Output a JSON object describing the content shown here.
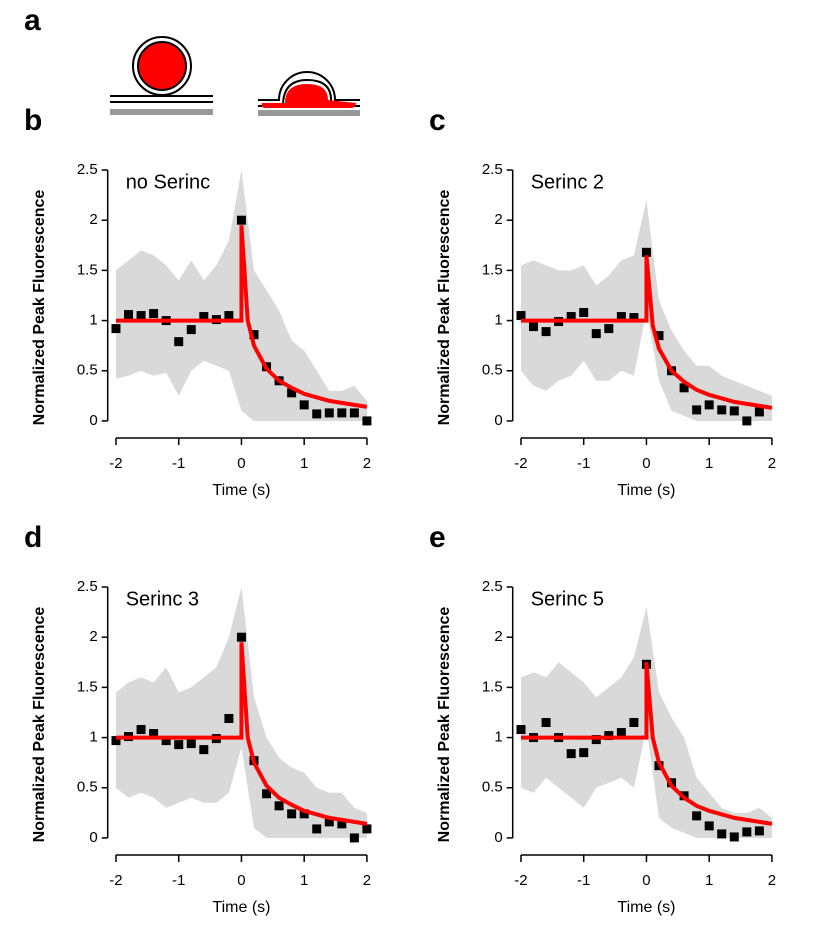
{
  "diagram_label": "a",
  "chart_data": [
    {
      "type": "scatter",
      "panel": "b",
      "annotation": "no Serinc",
      "y_label": "Normalized Peak Fluorescence",
      "x_label": "Time (s)",
      "xlim": [
        -2.1,
        2.1
      ],
      "ylim": [
        -0.17,
        2.55
      ],
      "xticks": [
        -2,
        -1,
        0,
        1,
        2
      ],
      "yticks": [
        0,
        0.5,
        1,
        1.5,
        2,
        2.5
      ],
      "band": {
        "color": "#d9d9d9",
        "x": [
          -2,
          -1.8,
          -1.6,
          -1.4,
          -1.2,
          -1,
          -0.8,
          -0.6,
          -0.4,
          -0.2,
          0,
          0.2,
          0.4,
          0.6,
          0.8,
          1,
          1.2,
          1.4,
          1.6,
          1.8,
          2
        ],
        "upper": [
          1.5,
          1.6,
          1.7,
          1.65,
          1.55,
          1.4,
          1.6,
          1.4,
          1.55,
          1.8,
          2.5,
          1.5,
          1.3,
          1.1,
          0.8,
          0.7,
          0.5,
          0.3,
          0.3,
          0.35,
          0.2
        ],
        "lower": [
          0.42,
          0.45,
          0.5,
          0.45,
          0.48,
          0.25,
          0.5,
          0.6,
          0.55,
          0.5,
          0.1,
          0,
          0,
          0,
          0,
          0,
          0,
          0,
          0,
          0,
          0
        ]
      },
      "points": {
        "color": "#000000",
        "x": [
          -2,
          -1.8,
          -1.6,
          -1.4,
          -1.2,
          -1,
          -0.8,
          -0.6,
          -0.4,
          -0.2,
          0,
          0.2,
          0.4,
          0.6,
          0.8,
          1,
          1.2,
          1.4,
          1.6,
          1.8,
          2
        ],
        "values": [
          0.92,
          1.06,
          1.05,
          1.07,
          1.0,
          0.79,
          0.91,
          1.04,
          1.01,
          1.05,
          2.0,
          0.86,
          0.54,
          0.4,
          0.28,
          0.16,
          0.07,
          0.08,
          0.08,
          0.08,
          0.0
        ]
      },
      "fit": {
        "color": "#ff0000",
        "x": [
          -2,
          0,
          0,
          0.1,
          0.2,
          0.4,
          0.6,
          0.8,
          1,
          1.4,
          2
        ],
        "values": [
          1,
          1,
          1.95,
          1.0,
          0.75,
          0.52,
          0.4,
          0.33,
          0.27,
          0.2,
          0.14
        ]
      }
    },
    {
      "type": "scatter",
      "panel": "c",
      "annotation": "Serinc 2",
      "y_label": "Normalized Peak Fluorescence",
      "x_label": "Time (s)",
      "xlim": [
        -2.1,
        2.1
      ],
      "ylim": [
        -0.17,
        2.55
      ],
      "xticks": [
        -2,
        -1,
        0,
        1,
        2
      ],
      "yticks": [
        0,
        0.5,
        1,
        1.5,
        2,
        2.5
      ],
      "band": {
        "color": "#d9d9d9",
        "x": [
          -2,
          -1.8,
          -1.6,
          -1.4,
          -1.2,
          -1,
          -0.8,
          -0.6,
          -0.4,
          -0.2,
          0,
          0.2,
          0.4,
          0.6,
          0.8,
          1,
          1.2,
          1.4,
          1.6,
          1.8,
          2
        ],
        "upper": [
          1.55,
          1.6,
          1.55,
          1.5,
          1.5,
          1.55,
          1.35,
          1.45,
          1.6,
          1.65,
          2.2,
          1.2,
          0.9,
          0.7,
          0.55,
          0.55,
          0.45,
          0.4,
          0.35,
          0.3,
          0.25
        ],
        "lower": [
          0.5,
          0.35,
          0.3,
          0.4,
          0.45,
          0.6,
          0.4,
          0.4,
          0.5,
          0.45,
          1.1,
          0.4,
          0.1,
          0.05,
          0,
          0,
          0,
          0,
          0,
          0,
          0
        ]
      },
      "points": {
        "color": "#000000",
        "x": [
          -2,
          -1.8,
          -1.6,
          -1.4,
          -1.2,
          -1,
          -0.8,
          -0.6,
          -0.4,
          -0.2,
          0,
          0.2,
          0.4,
          0.6,
          0.8,
          1,
          1.2,
          1.4,
          1.6,
          1.8
        ],
        "values": [
          1.05,
          0.94,
          0.89,
          0.99,
          1.04,
          1.08,
          0.87,
          0.92,
          1.04,
          1.03,
          1.68,
          0.85,
          0.5,
          0.33,
          0.11,
          0.16,
          0.11,
          0.1,
          0.0,
          0.09
        ]
      },
      "fit": {
        "color": "#ff0000",
        "x": [
          -2,
          0,
          0,
          0.1,
          0.2,
          0.4,
          0.6,
          0.8,
          1,
          1.4,
          2
        ],
        "values": [
          1,
          1,
          1.65,
          0.95,
          0.72,
          0.5,
          0.39,
          0.31,
          0.26,
          0.19,
          0.13
        ]
      }
    },
    {
      "type": "scatter",
      "panel": "d",
      "annotation": "Serinc 3",
      "y_label": "Normalized Peak Fluorescence",
      "x_label": "Time (s)",
      "xlim": [
        -2.1,
        2.1
      ],
      "ylim": [
        -0.17,
        2.55
      ],
      "xticks": [
        -2,
        -1,
        0,
        1,
        2
      ],
      "yticks": [
        0,
        0.5,
        1,
        1.5,
        2,
        2.5
      ],
      "band": {
        "color": "#d9d9d9",
        "x": [
          -2,
          -1.8,
          -1.6,
          -1.4,
          -1.2,
          -1,
          -0.8,
          -0.6,
          -0.4,
          -0.2,
          0,
          0.2,
          0.4,
          0.6,
          0.8,
          1,
          1.2,
          1.4,
          1.6,
          1.8,
          2
        ],
        "upper": [
          1.45,
          1.55,
          1.6,
          1.55,
          1.7,
          1.45,
          1.5,
          1.6,
          1.7,
          2.0,
          2.5,
          1.4,
          1.0,
          0.8,
          0.7,
          0.65,
          0.5,
          0.45,
          0.45,
          0.3,
          0.25
        ],
        "lower": [
          0.5,
          0.4,
          0.45,
          0.4,
          0.3,
          0.35,
          0.4,
          0.35,
          0.35,
          0.45,
          0.9,
          0.1,
          0,
          0,
          0,
          0,
          0,
          0,
          0,
          0,
          0
        ]
      },
      "points": {
        "color": "#000000",
        "x": [
          -2,
          -1.8,
          -1.6,
          -1.4,
          -1.2,
          -1,
          -0.8,
          -0.6,
          -0.4,
          -0.2,
          0,
          0.2,
          0.4,
          0.6,
          0.8,
          1,
          1.2,
          1.4,
          1.6,
          1.8,
          2
        ],
        "values": [
          0.97,
          1.01,
          1.08,
          1.04,
          0.97,
          0.93,
          0.94,
          0.88,
          0.99,
          1.19,
          2.0,
          0.77,
          0.44,
          0.32,
          0.24,
          0.24,
          0.09,
          0.16,
          0.14,
          0.0,
          0.09
        ]
      },
      "fit": {
        "color": "#ff0000",
        "x": [
          -2,
          0,
          0,
          0.1,
          0.2,
          0.4,
          0.6,
          0.8,
          1,
          1.4,
          2
        ],
        "values": [
          1,
          1,
          1.95,
          1.0,
          0.75,
          0.52,
          0.4,
          0.33,
          0.27,
          0.2,
          0.14
        ]
      }
    },
    {
      "type": "scatter",
      "panel": "e",
      "annotation": "Serinc 5",
      "y_label": "Normalized Peak Fluorescence",
      "x_label": "Time (s)",
      "xlim": [
        -2.1,
        2.1
      ],
      "ylim": [
        -0.17,
        2.55
      ],
      "xticks": [
        -2,
        -1,
        0,
        1,
        2
      ],
      "yticks": [
        0,
        0.5,
        1,
        1.5,
        2,
        2.5
      ],
      "band": {
        "color": "#d9d9d9",
        "x": [
          -2,
          -1.8,
          -1.6,
          -1.4,
          -1.2,
          -1,
          -0.8,
          -0.6,
          -0.4,
          -0.2,
          0,
          0.2,
          0.4,
          0.6,
          0.8,
          1,
          1.2,
          1.4,
          1.6,
          1.8,
          2
        ],
        "upper": [
          1.6,
          1.65,
          1.6,
          1.75,
          1.65,
          1.55,
          1.4,
          1.5,
          1.6,
          1.8,
          2.3,
          1.45,
          1.2,
          1.0,
          0.6,
          0.45,
          0.3,
          0.25,
          0.25,
          0.3,
          0.2
        ],
        "lower": [
          0.5,
          0.45,
          0.6,
          0.5,
          0.4,
          0.3,
          0.5,
          0.55,
          0.6,
          0.5,
          1.1,
          0.2,
          0.1,
          0.05,
          0,
          0,
          0,
          0,
          0,
          0,
          0
        ]
      },
      "points": {
        "color": "#000000",
        "x": [
          -2,
          -1.8,
          -1.6,
          -1.4,
          -1.2,
          -1,
          -0.8,
          -0.6,
          -0.4,
          -0.2,
          0,
          0.2,
          0.4,
          0.6,
          0.8,
          1,
          1.2,
          1.4,
          1.6,
          1.8
        ],
        "values": [
          1.08,
          1.0,
          1.15,
          1.0,
          0.84,
          0.85,
          0.98,
          1.02,
          1.05,
          1.15,
          1.73,
          0.72,
          0.55,
          0.42,
          0.22,
          0.12,
          0.04,
          0.01,
          0.06,
          0.07
        ]
      },
      "fit": {
        "color": "#ff0000",
        "x": [
          -2,
          0,
          0,
          0.1,
          0.2,
          0.4,
          0.6,
          0.8,
          1,
          1.4,
          2
        ],
        "values": [
          1,
          1,
          1.75,
          1.0,
          0.75,
          0.52,
          0.4,
          0.32,
          0.27,
          0.2,
          0.14
        ]
      }
    }
  ]
}
